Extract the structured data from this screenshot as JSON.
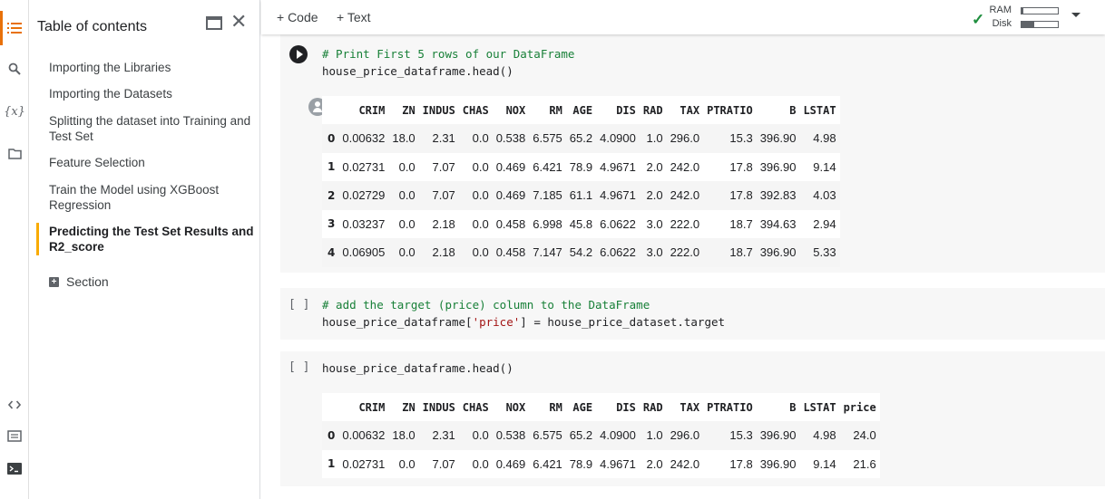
{
  "toolbar": {
    "add_code": "+ Code",
    "add_text": "+ Text",
    "ram_label": "RAM",
    "disk_label": "Disk",
    "ram_usage": 0.05,
    "disk_usage": 0.35
  },
  "toc": {
    "title": "Table of contents",
    "items": [
      "Importing the Libraries",
      "Importing the Datasets",
      "Splitting the dataset into Training and Test Set",
      "Feature Selection",
      "Train the Model using XGBoost Regression",
      "Predicting the Test Set Results and R2_score"
    ],
    "section_label": "Section"
  },
  "cells": {
    "c1": {
      "comment": "# Print First 5 rows of our DataFrame",
      "code": "house_price_dataframe.head()"
    },
    "c2": {
      "bracket": "[ ]",
      "comment": "# add the target (price) column to the DataFrame",
      "code_a": "house_price_dataframe[",
      "code_str": "'price'",
      "code_b": "] = house_price_dataset.target"
    },
    "c3": {
      "bracket": "[ ]",
      "code": "house_price_dataframe.head()"
    }
  },
  "table1": {
    "columns": [
      "",
      "CRIM",
      "ZN",
      "INDUS",
      "CHAS",
      "NOX",
      "RM",
      "AGE",
      "DIS",
      "RAD",
      "TAX",
      "PTRATIO",
      "B",
      "LSTAT"
    ],
    "rows": [
      [
        "0",
        "0.00632",
        "18.0",
        "2.31",
        "0.0",
        "0.538",
        "6.575",
        "65.2",
        "4.0900",
        "1.0",
        "296.0",
        "15.3",
        "396.90",
        "4.98"
      ],
      [
        "1",
        "0.02731",
        "0.0",
        "7.07",
        "0.0",
        "0.469",
        "6.421",
        "78.9",
        "4.9671",
        "2.0",
        "242.0",
        "17.8",
        "396.90",
        "9.14"
      ],
      [
        "2",
        "0.02729",
        "0.0",
        "7.07",
        "0.0",
        "0.469",
        "7.185",
        "61.1",
        "4.9671",
        "2.0",
        "242.0",
        "17.8",
        "392.83",
        "4.03"
      ],
      [
        "3",
        "0.03237",
        "0.0",
        "2.18",
        "0.0",
        "0.458",
        "6.998",
        "45.8",
        "6.0622",
        "3.0",
        "222.0",
        "18.7",
        "394.63",
        "2.94"
      ],
      [
        "4",
        "0.06905",
        "0.0",
        "2.18",
        "0.0",
        "0.458",
        "7.147",
        "54.2",
        "6.0622",
        "3.0",
        "222.0",
        "18.7",
        "396.90",
        "5.33"
      ]
    ]
  },
  "table2": {
    "columns": [
      "",
      "CRIM",
      "ZN",
      "INDUS",
      "CHAS",
      "NOX",
      "RM",
      "AGE",
      "DIS",
      "RAD",
      "TAX",
      "PTRATIO",
      "B",
      "LSTAT",
      "price"
    ],
    "rows": [
      [
        "0",
        "0.00632",
        "18.0",
        "2.31",
        "0.0",
        "0.538",
        "6.575",
        "65.2",
        "4.0900",
        "1.0",
        "296.0",
        "15.3",
        "396.90",
        "4.98",
        "24.0"
      ],
      [
        "1",
        "0.02731",
        "0.0",
        "7.07",
        "0.0",
        "0.469",
        "6.421",
        "78.9",
        "4.9671",
        "2.0",
        "242.0",
        "17.8",
        "396.90",
        "9.14",
        "21.6"
      ]
    ]
  }
}
